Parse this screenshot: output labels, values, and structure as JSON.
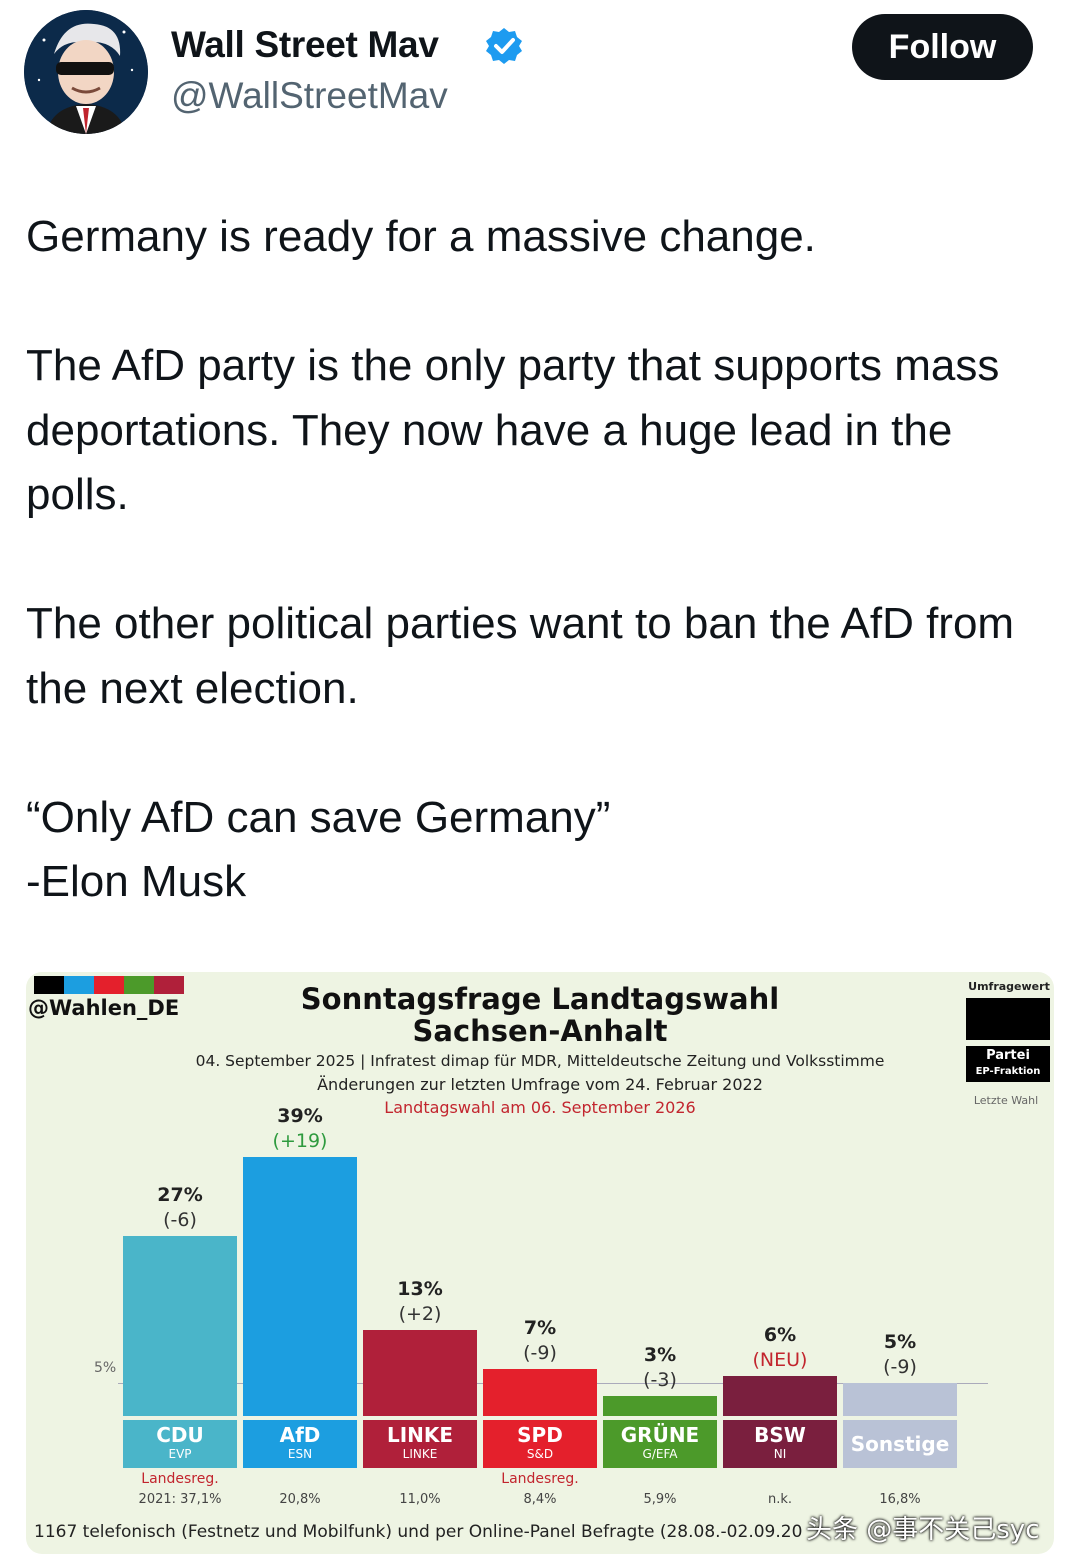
{
  "header": {
    "author_name": "Wall Street Mav",
    "handle": "@WallStreetMav",
    "follow_label": "Follow"
  },
  "tweet": {
    "paragraphs": [
      "Germany is ready for a massive change.",
      "The AfD party is the only party that supports mass deportations. They now have a huge lead in the polls.",
      "The other political parties want to ban the AfD from the next election.",
      "“Only AfD can save Germany”\n-Elon Musk"
    ]
  },
  "poll": {
    "source": "@Wahlen_DE",
    "title_line1": "Sonntagsfrage Landtagswahl",
    "title_line2": "Sachsen-Anhalt",
    "subtitle1": "04. September 2025 | Infratest dimap für MDR, Mitteldeutsche Zeitung und Volksstimme",
    "subtitle2": "Änderungen zur letzten Umfrage vom 24. Februar 2022",
    "subtitle3": "Landtagswahl am 06. September 2026",
    "legend_value": "Umfragewert",
    "legend_party": "Partei",
    "legend_faction": "EP-Fraktion",
    "legend_last": "Letzte Wahl",
    "ytick_label": "5%",
    "gov_label": "Landesreg.",
    "footer": "1167 telefonisch (Festnetz und Mobilfunk) und per Online-Panel Befragte (28.08.-02.09.20",
    "watermark": "头条 @事不关己syc"
  },
  "chart_data": {
    "type": "bar",
    "title": "Sonntagsfrage Landtagswahl Sachsen-Anhalt",
    "categories": [
      "CDU",
      "AfD",
      "LINKE",
      "SPD",
      "GRÜNE",
      "BSW",
      "Sonstige"
    ],
    "groups": [
      "EVP",
      "ESN",
      "LINKE",
      "S&D",
      "G/EFA",
      "NI",
      ""
    ],
    "values": [
      27,
      39,
      13,
      7,
      3,
      6,
      5
    ],
    "value_labels": [
      "27%",
      "39%",
      "13%",
      "7%",
      "3%",
      "6%",
      "5%"
    ],
    "changes": [
      "(-6)",
      "(+19)",
      "(+2)",
      "(-9)",
      "(-3)",
      "(NEU)",
      "(-9)"
    ],
    "last_election": [
      "2021: 37,1%",
      "20,8%",
      "11,0%",
      "8,4%",
      "5,9%",
      "n.k.",
      "16,8%"
    ],
    "colors": [
      "#4ab5c9",
      "#1c9ee0",
      "#b0203a",
      "#e4202c",
      "#4c9a2a",
      "#7a1f3e",
      "#b9c2d6"
    ],
    "ylim": [
      0,
      40
    ]
  }
}
